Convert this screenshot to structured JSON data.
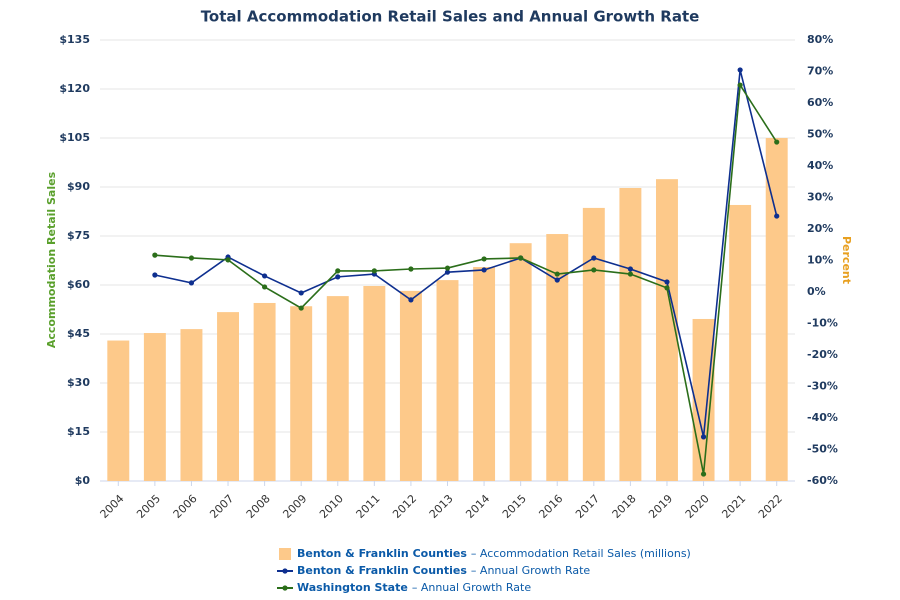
{
  "chart_data": {
    "type": "combo",
    "title": "Total Accommodation Retail Sales and Annual Growth Rate",
    "y_label": "Accommodation Retail Sales",
    "y2_label": "Percent",
    "categories": [
      "2004",
      "2005",
      "2006",
      "2007",
      "2008",
      "2009",
      "2010",
      "2011",
      "2012",
      "2013",
      "2014",
      "2015",
      "2016",
      "2017",
      "2018",
      "2019",
      "2020",
      "2021",
      "2022"
    ],
    "series": [
      {
        "name": "Benton & Franklin Counties",
        "description": "– Accommodation Retail Sales (millions)",
        "type": "bar",
        "color": "#fdc98a",
        "values": [
          43,
          45.3,
          46.5,
          51.7,
          54.5,
          53.5,
          56.6,
          59.7,
          58.2,
          61.5,
          65.5,
          72.8,
          75.6,
          83.6,
          89.7,
          92.4,
          49.6,
          84.5,
          105
        ]
      },
      {
        "name": "Benton & Franklin Counties",
        "description": "– Annual Growth Rate",
        "type": "line",
        "axis": "y2",
        "color": "#0e2f8f",
        "values": [
          null,
          5.4,
          2.9,
          11.1,
          5.1,
          -0.3,
          4.8,
          5.7,
          -2.5,
          6.3,
          7,
          10.8,
          3.8,
          10.8,
          7.3,
          3.2,
          -46,
          70.5,
          24.1
        ]
      },
      {
        "name": "Washington State",
        "description": "– Annual Growth Rate",
        "type": "line",
        "axis": "y2",
        "color": "#2b6e1a",
        "values": [
          null,
          11.7,
          10.8,
          10.2,
          1.6,
          -5.1,
          6.7,
          6.7,
          7.3,
          7.6,
          10.5,
          10.8,
          5.7,
          7,
          5.7,
          1.3,
          -57.8,
          65.7,
          47.6
        ]
      }
    ],
    "ylim": [
      0,
      135
    ],
    "yticks": [
      {
        "value": 0,
        "label": "$0"
      },
      {
        "value": 15,
        "label": "$15"
      },
      {
        "value": 30,
        "label": "$30"
      },
      {
        "value": 45,
        "label": "$45"
      },
      {
        "value": 60,
        "label": "$60"
      },
      {
        "value": 75,
        "label": "$75"
      },
      {
        "value": 90,
        "label": "$90"
      },
      {
        "value": 105,
        "label": "$105"
      },
      {
        "value": 120,
        "label": "$120"
      },
      {
        "value": 135,
        "label": "$135"
      }
    ],
    "y2lim": [
      -60,
      80
    ],
    "y2ticks": [
      {
        "value": -60,
        "label": "-60%"
      },
      {
        "value": -50,
        "label": "-50%"
      },
      {
        "value": -40,
        "label": "-40%"
      },
      {
        "value": -30,
        "label": "-30%"
      },
      {
        "value": -20,
        "label": "-20%"
      },
      {
        "value": -10,
        "label": "-10%"
      },
      {
        "value": 0,
        "label": "0%"
      },
      {
        "value": 10,
        "label": "10%"
      },
      {
        "value": 20,
        "label": "20%"
      },
      {
        "value": 30,
        "label": "30%"
      },
      {
        "value": 40,
        "label": "40%"
      },
      {
        "value": 50,
        "label": "50%"
      },
      {
        "value": 60,
        "label": "60%"
      },
      {
        "value": 70,
        "label": "70%"
      },
      {
        "value": 80,
        "label": "80%"
      }
    ],
    "grid": true
  }
}
